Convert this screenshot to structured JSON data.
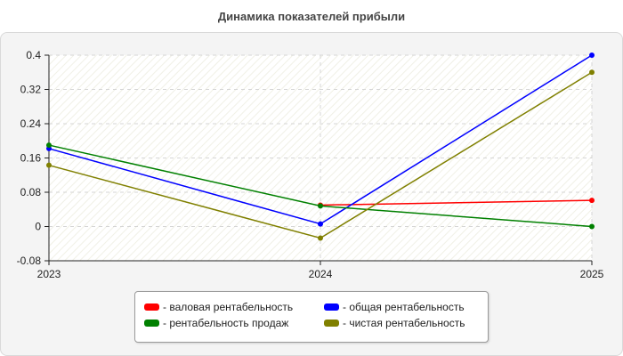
{
  "chart_data": {
    "type": "line",
    "title": "Динамика показателей прибыли",
    "xlabel": "",
    "ylabel": "",
    "categories": [
      "2023",
      "2024",
      "2025"
    ],
    "ylim": [
      -0.08,
      0.4
    ],
    "yticks": [
      "0.4",
      "0.32",
      "0.24",
      "0.16",
      "0.08",
      "0",
      "-0.08"
    ],
    "yticks_values": [
      0.4,
      0.32,
      0.24,
      0.16,
      0.08,
      0,
      -0.08
    ],
    "grid": true,
    "legend_position": "bottom-center",
    "series": [
      {
        "name": "- валовая рентабельность",
        "color": "#ff0000",
        "values": [
          null,
          0.05,
          0.061
        ]
      },
      {
        "name": "- общая рентабельность",
        "color": "#0000ff",
        "values": [
          0.182,
          0.006,
          0.4
        ]
      },
      {
        "name": "- рентабельность продаж",
        "color": "#008000",
        "values": [
          0.19,
          0.048,
          0.0
        ]
      },
      {
        "name": "- чистая рентабельность",
        "color": "#808000",
        "values": [
          0.143,
          -0.027,
          0.36
        ]
      }
    ]
  }
}
